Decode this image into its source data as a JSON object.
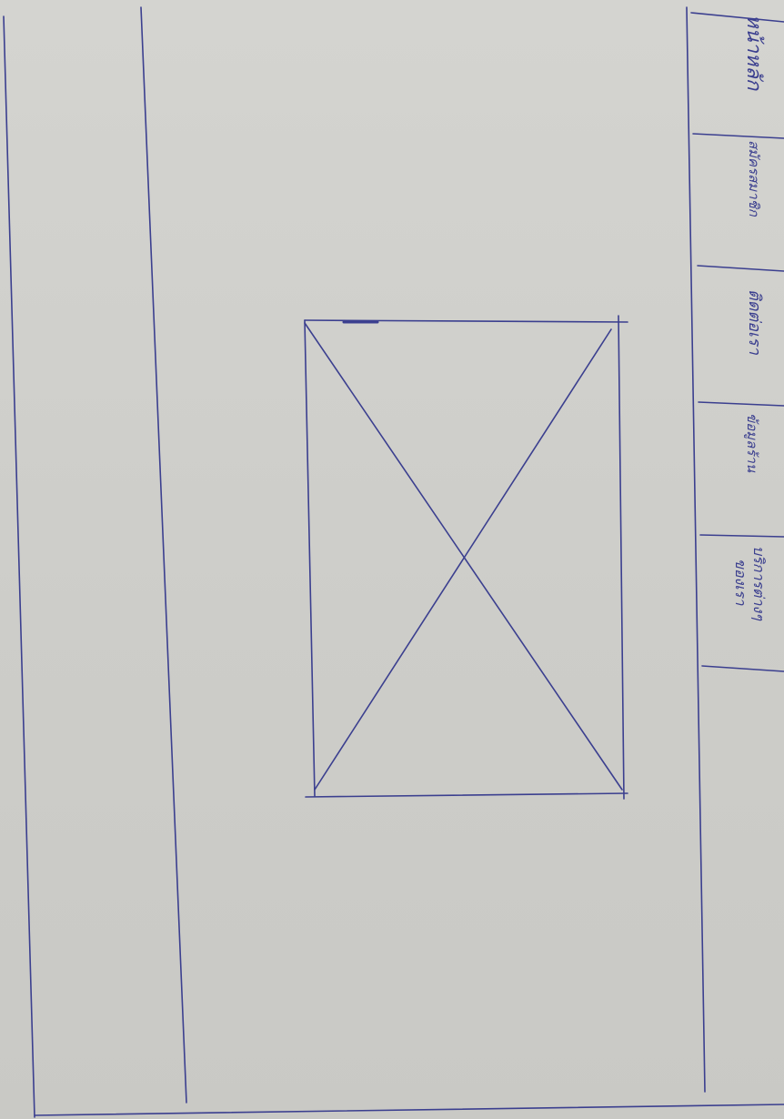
{
  "colors": {
    "ink": "#3b3f8f",
    "paper": "#cfcfcb"
  },
  "menu": {
    "items": [
      {
        "id": "home",
        "label": "หน้าหลัก"
      },
      {
        "id": "register",
        "label": "สมัครสมาชิก"
      },
      {
        "id": "rules",
        "label": "ติดต่อเรา"
      },
      {
        "id": "about",
        "label": "ข้อมูลร้าน"
      },
      {
        "id": "services",
        "label": "บริการต่างๆ",
        "sublabel": "ของเรา"
      }
    ]
  },
  "content": {
    "image_placeholder": "image-placeholder-icon"
  }
}
